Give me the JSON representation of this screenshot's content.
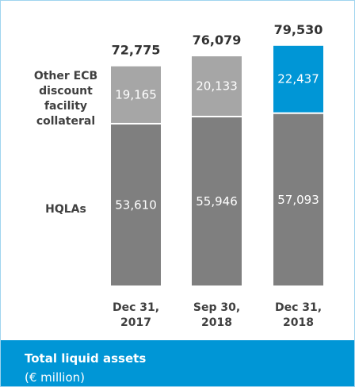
{
  "chart_data": {
    "type": "stacked_bar",
    "categories": [
      "Dec 31, 2017",
      "Sep 30, 2018",
      "Dec 31, 2018"
    ],
    "series": [
      {
        "name": "HQLAs",
        "color": "#7f7f7f",
        "values": [
          53610,
          55946,
          57093
        ],
        "value_labels": [
          "53,610",
          "55,946",
          "57,093"
        ]
      },
      {
        "name": "Other ECB discount facility collateral",
        "color": "#a6a6a6",
        "point_colors": [
          "#a6a6a6",
          "#a6a6a6",
          "#0096d6"
        ],
        "values": [
          19165,
          20133,
          22437
        ],
        "value_labels": [
          "19,165",
          "20,133",
          "22,437"
        ]
      }
    ],
    "totals": [
      72775,
      76079,
      79530
    ],
    "total_labels": [
      "72,775",
      "76,079",
      "79,530"
    ],
    "ylim": [
      0,
      80000
    ],
    "footer": {
      "title": "Total liquid assets",
      "subtitle": "(€ million)"
    }
  }
}
